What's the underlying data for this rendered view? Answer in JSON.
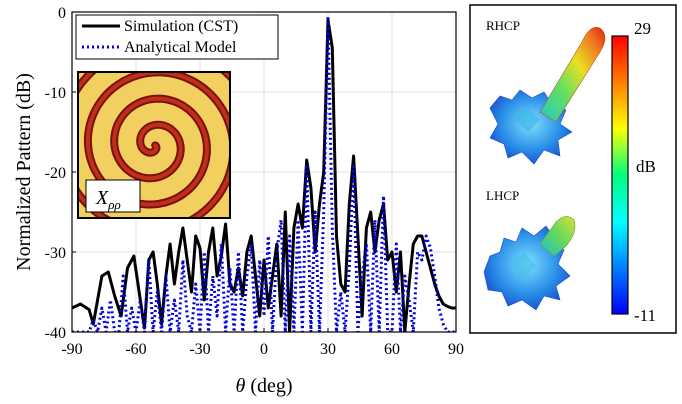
{
  "chart_data": {
    "type": "line",
    "xlabel_symbol": "θ",
    "xlabel_unit": "(deg)",
    "ylabel": "Normalized Pattern (dB)",
    "xlim": [
      -90,
      90
    ],
    "ylim": [
      -40,
      0
    ],
    "xticks": [
      "-90",
      "-60",
      "-30",
      "0",
      "30",
      "60",
      "90"
    ],
    "yticks": [
      "0",
      "-10",
      "-20",
      "-30",
      "-40"
    ],
    "grid": true,
    "legend_position": "top-left",
    "series": [
      {
        "name": "Simulation (CST)",
        "color": "#000000",
        "style": "solid",
        "x": [
          -90,
          -86,
          -82,
          -80,
          -78,
          -76,
          -73,
          -70,
          -67,
          -64,
          -61,
          -58,
          -56,
          -54,
          -52,
          -50,
          -48,
          -46,
          -44,
          -42,
          -40,
          -38,
          -36,
          -34,
          -32,
          -30,
          -28,
          -26,
          -24,
          -22,
          -20,
          -18,
          -16,
          -14,
          -12,
          -10,
          -8,
          -6,
          -4,
          -2,
          0,
          2,
          4,
          6,
          8,
          10,
          12,
          14,
          16,
          18,
          20,
          22,
          24,
          26,
          28,
          30,
          32,
          34,
          36,
          38,
          40,
          42,
          44,
          46,
          48,
          50,
          52,
          54,
          56,
          58,
          60,
          62,
          64,
          66,
          68,
          70,
          72,
          74,
          76,
          78,
          80,
          82,
          84,
          86,
          88,
          90
        ],
        "y": [
          -37,
          -36.5,
          -37.2,
          -39,
          -36,
          -33,
          -32.5,
          -35.5,
          -38,
          -32,
          -30.5,
          -36,
          -39.5,
          -31,
          -30,
          -34,
          -39,
          -33,
          -29,
          -34,
          -30,
          -27,
          -31,
          -35,
          -28,
          -29.5,
          -36,
          -30,
          -27,
          -33,
          -30.5,
          -26.5,
          -34,
          -35,
          -32,
          -35.5,
          -30,
          -28,
          -33,
          -38,
          -31,
          -37,
          -33,
          -29,
          -38,
          -25,
          -40,
          -27,
          -24,
          -27,
          -18.5,
          -22,
          -30,
          -24,
          -20,
          -1,
          -4.5,
          -28,
          -34,
          -35,
          -24,
          -18,
          -28,
          -38,
          -27,
          -25,
          -30,
          -26,
          -24,
          -31,
          -30,
          -35,
          -30,
          -40,
          -34,
          -29,
          -28,
          -28,
          -30,
          -32,
          -34,
          -35.5,
          -36.5,
          -36.8,
          -37,
          -37
        ]
      },
      {
        "name": "Analytical Model",
        "color": "#0000dd",
        "style": "dotted",
        "x": [
          -90,
          -88,
          -86,
          -84,
          -82,
          -80,
          -78,
          -76,
          -74,
          -72,
          -70,
          -68,
          -66,
          -64,
          -62,
          -60,
          -58,
          -56,
          -54,
          -52,
          -50,
          -48,
          -46,
          -44,
          -42,
          -40,
          -38,
          -36,
          -34,
          -32,
          -30,
          -28,
          -26,
          -24,
          -22,
          -20,
          -18,
          -16,
          -14,
          -12,
          -10,
          -8,
          -6,
          -4,
          -2,
          0,
          2,
          4,
          6,
          8,
          10,
          12,
          14,
          16,
          18,
          20,
          22,
          24,
          26,
          28,
          30,
          32,
          34,
          36,
          38,
          40,
          42,
          44,
          46,
          48,
          50,
          52,
          54,
          56,
          58,
          60,
          62,
          64,
          66,
          68,
          70,
          72,
          74,
          76,
          78,
          80,
          82,
          84,
          86,
          88,
          90
        ],
        "y": [
          -40,
          -40,
          -40,
          -40,
          -40,
          -38.5,
          -40,
          -37,
          -40,
          -36,
          -40,
          -40,
          -33,
          -40,
          -37,
          -40,
          -36,
          -40,
          -31,
          -40,
          -35,
          -40,
          -33,
          -40,
          -36,
          -40,
          -31,
          -38,
          -40,
          -34,
          -40,
          -30,
          -40,
          -33,
          -38,
          -29,
          -40,
          -32,
          -40,
          -30,
          -40,
          -33,
          -29,
          -40,
          -31,
          -38,
          -28,
          -40,
          -30,
          -26,
          -40,
          -28,
          -40,
          -26,
          -40,
          -19,
          -40,
          -25,
          -40,
          -25,
          -0.5,
          -27,
          -40,
          -35,
          -40,
          -32,
          -19,
          -40,
          -33,
          -29,
          -40,
          -26,
          -40,
          -23,
          -40,
          -40,
          -29,
          -40,
          -33,
          -36,
          -40,
          -30,
          -31,
          -28,
          -29.5,
          -33,
          -37,
          -39,
          -40,
          -40,
          -40
        ]
      }
    ]
  },
  "legend": {
    "entries": [
      "Simulation (CST)",
      "Analytical Model"
    ]
  },
  "inset": {
    "label_main": "X",
    "label_sub": "ρρ"
  },
  "side_panel": {
    "labels": [
      "RHCP",
      "LHCP"
    ],
    "colorbar_max": "29",
    "colorbar_min": "-11",
    "colorbar_unit": "dB",
    "colormap": [
      "#0000ff",
      "#0080ff",
      "#00ffff",
      "#00ff80",
      "#ffff00",
      "#ff8000",
      "#ff0000"
    ]
  }
}
